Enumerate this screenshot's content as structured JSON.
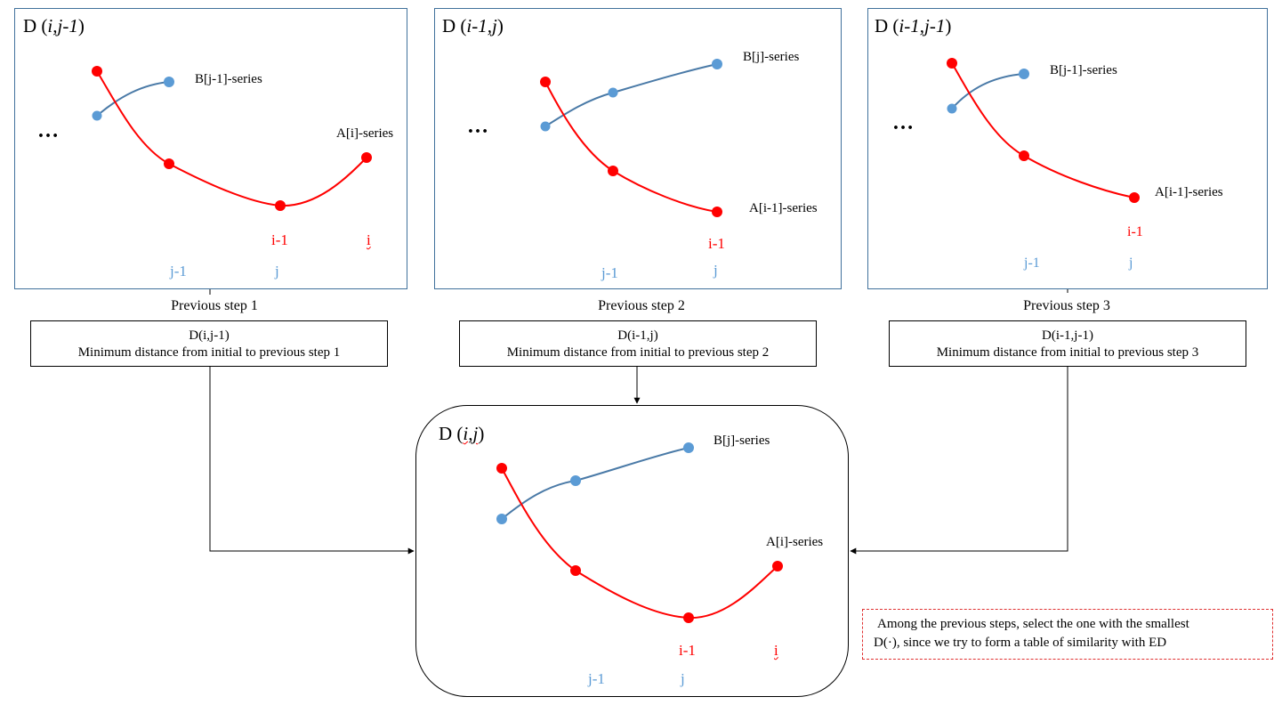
{
  "colors": {
    "red_series": "#ff0000",
    "blue_series": "#4a7aa7",
    "blue_dot": "#5b9bd5",
    "panel_border": "#41719c",
    "note_border": "#e03030"
  },
  "panels": [
    {
      "title_prefix": "D (",
      "title_italic": "i,j-1",
      "title_suffix": ")",
      "ellipsis": "…",
      "b_label": "B[j-1]-series",
      "a_label": "A[i]-series",
      "idx_i1": "i-1",
      "idx_i": "i",
      "idx_j1": "j-1",
      "idx_j": "j"
    },
    {
      "title_prefix": "D (",
      "title_italic": "i-1,j",
      "title_suffix": ")",
      "ellipsis": "…",
      "b_label": "B[j]-series",
      "a_label": "A[i-1]-series",
      "idx_i1": "i-1",
      "idx_j1": "j-1",
      "idx_j": "j"
    },
    {
      "title_prefix": "D (",
      "title_italic": "i-1,j-1",
      "title_suffix": ")",
      "ellipsis": "…",
      "b_label": "B[j-1]-series",
      "a_label": "A[i-1]-series",
      "idx_i1": "i-1",
      "idx_j1": "j-1",
      "idx_j": "j"
    }
  ],
  "steps": [
    {
      "label": "Previous step 1",
      "d": "D(i,j-1)",
      "desc": "Minimum distance from initial to previous step 1"
    },
    {
      "label": "Previous step 2",
      "d": "D(i-1,j)",
      "desc": "Minimum distance from initial to previous step 2"
    },
    {
      "label": "Previous step 3",
      "d": "D(i-1,j-1)",
      "desc": "Minimum distance from initial to previous step 3"
    }
  ],
  "center": {
    "title_prefix": "D (",
    "title_italic": "i,j",
    "title_suffix": ")",
    "b_label": "B[j]-series",
    "a_label": "A[i]-series",
    "idx_i1": "i-1",
    "idx_i": "i",
    "idx_j1": "j-1",
    "idx_j": "j"
  },
  "note": {
    "line1": "Among the previous steps, select the one with the smallest",
    "line2": "D(·), since we try to form a table of similarity with ED"
  }
}
